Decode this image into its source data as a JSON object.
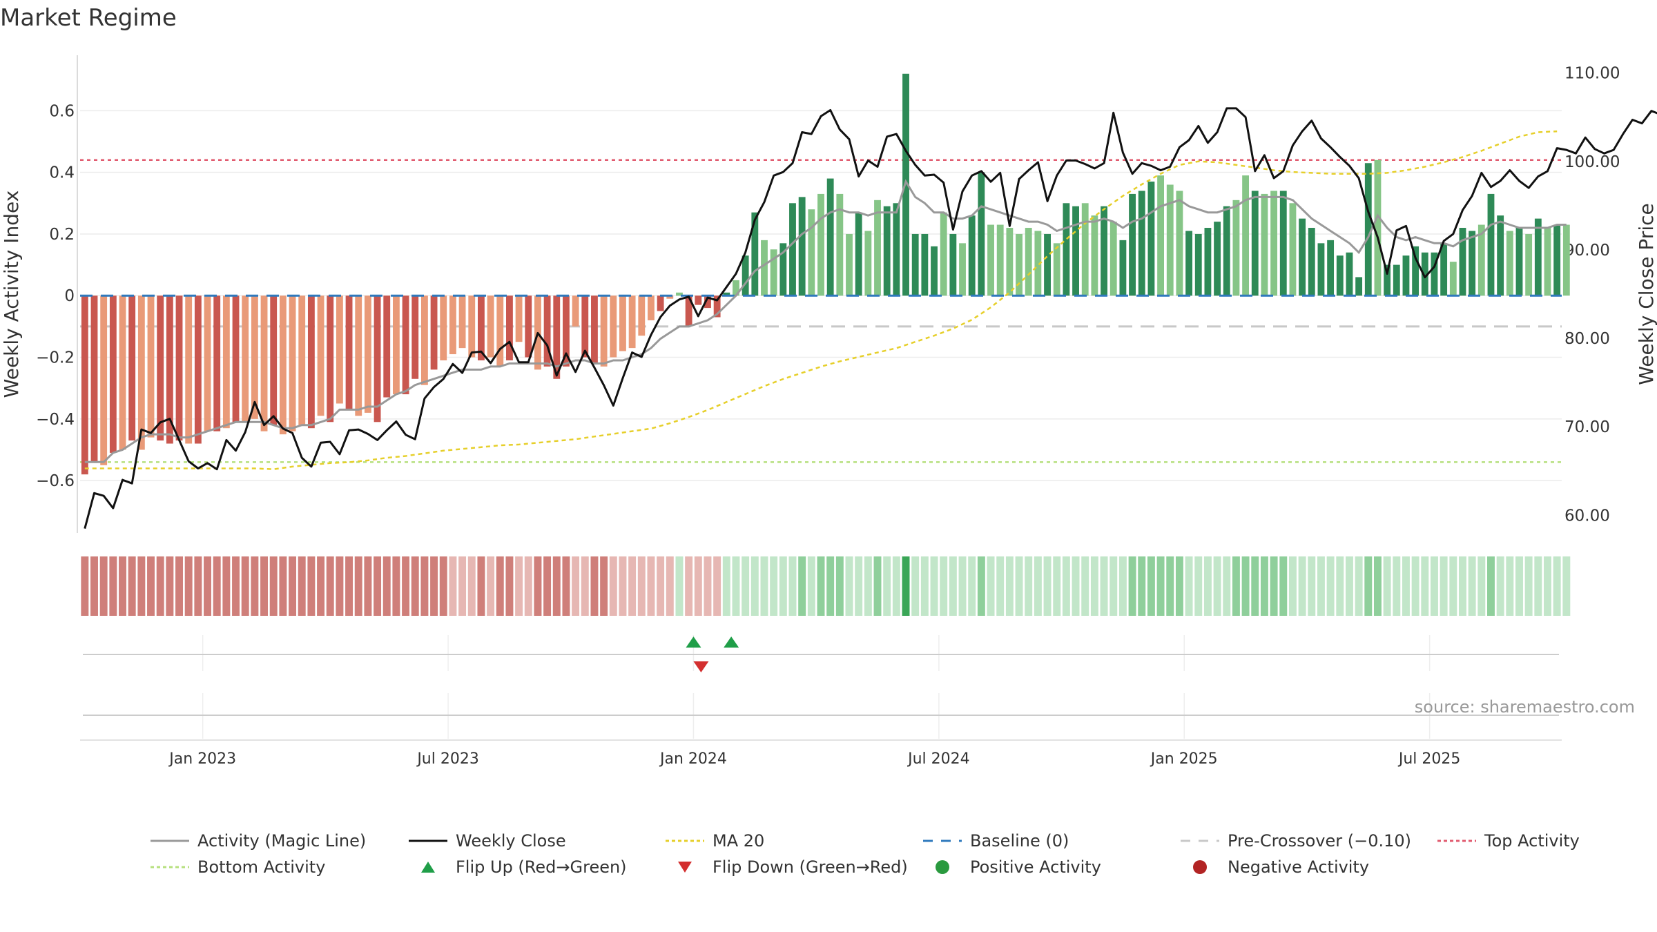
{
  "chart_data": {
    "type": "bar",
    "title": "Market Regime",
    "source_text": "source: sharemaestro.com",
    "y_left": {
      "label": "Weekly Activity Index",
      "ticks": [
        "0.6",
        "0.4",
        "0.2",
        "0",
        "−0.2",
        "−0.4",
        "−0.6"
      ],
      "ylim": [
        -0.77,
        0.78
      ]
    },
    "y_right": {
      "label": "Weekly Close Price",
      "ticks": [
        "110.00",
        "100.00",
        "90.00",
        "80.00",
        "70.00",
        "60.00"
      ],
      "ylim": [
        58.0,
        112.0
      ]
    },
    "x_ticks": [
      "Jan 2023",
      "Jul 2023",
      "Jan 2024",
      "Jul 2024",
      "Jan 2025",
      "Jul 2025"
    ],
    "x_tick_weeks": [
      12.5,
      38.5,
      64.5,
      90.5,
      116.5,
      142.5
    ],
    "weeks_total": 157,
    "activity": [
      -0.58,
      -0.54,
      -0.55,
      -0.51,
      -0.5,
      -0.47,
      -0.5,
      -0.46,
      -0.47,
      -0.48,
      -0.47,
      -0.48,
      -0.48,
      -0.44,
      -0.44,
      -0.43,
      -0.41,
      -0.41,
      -0.4,
      -0.44,
      -0.42,
      -0.45,
      -0.44,
      -0.42,
      -0.43,
      -0.39,
      -0.41,
      -0.35,
      -0.37,
      -0.39,
      -0.38,
      -0.41,
      -0.33,
      -0.32,
      -0.32,
      -0.27,
      -0.29,
      -0.24,
      -0.21,
      -0.19,
      -0.17,
      -0.2,
      -0.21,
      -0.2,
      -0.23,
      -0.21,
      -0.15,
      -0.2,
      -0.24,
      -0.23,
      -0.27,
      -0.23,
      -0.1,
      -0.2,
      -0.22,
      -0.23,
      -0.2,
      -0.18,
      -0.17,
      -0.13,
      -0.08,
      -0.05,
      -0.01,
      0.01,
      -0.1,
      -0.03,
      -0.04,
      -0.07,
      0.01,
      0.05,
      0.13,
      0.27,
      0.18,
      0.15,
      0.17,
      0.3,
      0.32,
      0.28,
      0.33,
      0.38,
      0.33,
      0.2,
      0.27,
      0.21,
      0.31,
      0.29,
      0.3,
      0.72,
      0.2,
      0.2,
      0.16,
      0.27,
      0.2,
      0.17,
      0.26,
      0.4,
      0.23,
      0.23,
      0.22,
      0.2,
      0.22,
      0.21,
      0.2,
      0.17,
      0.3,
      0.29,
      0.3,
      0.26,
      0.29,
      0.24,
      0.18,
      0.33,
      0.34,
      0.37,
      0.39,
      0.36,
      0.34,
      0.21,
      0.2,
      0.22,
      0.24,
      0.29,
      0.31,
      0.39,
      0.34,
      0.33,
      0.34,
      0.34,
      0.3,
      0.25,
      0.22,
      0.17,
      0.18,
      0.13,
      0.14,
      0.06,
      0.43,
      0.44,
      0.1,
      0.1,
      0.13,
      0.16,
      0.14,
      0.14,
      0.17,
      0.11,
      0.22,
      0.21,
      0.23,
      0.33,
      0.26,
      0.21,
      0.22,
      0.2,
      0.25,
      0.22,
      0.23,
      0.23
    ],
    "bar_shades": [
      1,
      1,
      0,
      1,
      0,
      1,
      0,
      0,
      1,
      1,
      1,
      0,
      1,
      0,
      1,
      0,
      1,
      0,
      0,
      0,
      1,
      0,
      0,
      0,
      1,
      0,
      1,
      0,
      1,
      0,
      0,
      1,
      1,
      0,
      1,
      1,
      0,
      1,
      0,
      0,
      0,
      0,
      1,
      0,
      0,
      1,
      0,
      1,
      0,
      1,
      1,
      1,
      0,
      1,
      1,
      0,
      0,
      0,
      0,
      0,
      0,
      1,
      0,
      0,
      1,
      1,
      1,
      1,
      1,
      0,
      1,
      1,
      0,
      0,
      1,
      1,
      1,
      0,
      0,
      1,
      0,
      0,
      1,
      0,
      0,
      1,
      1,
      1,
      1,
      1,
      1,
      0,
      1,
      0,
      1,
      1,
      0,
      0,
      0,
      0,
      0,
      0,
      1,
      0,
      1,
      1,
      0,
      0,
      1,
      0,
      1,
      1,
      1,
      1,
      0,
      0,
      0,
      1,
      1,
      1,
      1,
      1,
      0,
      0,
      1,
      0,
      0,
      1,
      0,
      1,
      1,
      1,
      1,
      1,
      1,
      1,
      1,
      0,
      1,
      1,
      1,
      1,
      1,
      1,
      1,
      0,
      1,
      1,
      0,
      1,
      1,
      0,
      1,
      0,
      1,
      0,
      1
    ],
    "magic_line": [
      -0.54,
      -0.54,
      -0.54,
      -0.51,
      -0.5,
      -0.48,
      -0.46,
      -0.45,
      -0.45,
      -0.45,
      -0.46,
      -0.46,
      -0.45,
      -0.44,
      -0.43,
      -0.42,
      -0.41,
      -0.41,
      -0.41,
      -0.41,
      -0.42,
      -0.43,
      -0.43,
      -0.42,
      -0.42,
      -0.41,
      -0.4,
      -0.37,
      -0.37,
      -0.37,
      -0.36,
      -0.36,
      -0.34,
      -0.32,
      -0.31,
      -0.29,
      -0.28,
      -0.27,
      -0.26,
      -0.25,
      -0.24,
      -0.24,
      -0.24,
      -0.23,
      -0.23,
      -0.22,
      -0.22,
      -0.22,
      -0.22,
      -0.22,
      -0.23,
      -0.22,
      -0.21,
      -0.21,
      -0.22,
      -0.22,
      -0.21,
      -0.21,
      -0.2,
      -0.19,
      -0.17,
      -0.14,
      -0.12,
      -0.1,
      -0.1,
      -0.09,
      -0.08,
      -0.06,
      -0.03,
      0.0,
      0.04,
      0.08,
      0.1,
      0.12,
      0.14,
      0.17,
      0.2,
      0.22,
      0.25,
      0.27,
      0.28,
      0.27,
      0.27,
      0.26,
      0.27,
      0.27,
      0.27,
      0.37,
      0.32,
      0.3,
      0.27,
      0.27,
      0.25,
      0.25,
      0.26,
      0.29,
      0.28,
      0.27,
      0.26,
      0.25,
      0.24,
      0.24,
      0.23,
      0.21,
      0.22,
      0.23,
      0.24,
      0.24,
      0.25,
      0.24,
      0.22,
      0.24,
      0.25,
      0.27,
      0.29,
      0.3,
      0.31,
      0.29,
      0.28,
      0.27,
      0.27,
      0.28,
      0.29,
      0.31,
      0.32,
      0.32,
      0.32,
      0.32,
      0.31,
      0.28,
      0.25,
      0.23,
      0.21,
      0.19,
      0.17,
      0.14,
      0.19,
      0.26,
      0.22,
      0.19,
      0.18,
      0.19,
      0.18,
      0.17,
      0.17,
      0.16,
      0.18,
      0.19,
      0.2,
      0.23,
      0.24,
      0.23,
      0.22,
      0.22,
      0.22,
      0.22,
      0.23,
      0.23
    ],
    "weekly_close": [
      58.5,
      62.5,
      62.2,
      60.8,
      64.0,
      63.6,
      69.7,
      69.3,
      70.5,
      70.9,
      68.5,
      66.1,
      65.3,
      65.9,
      65.2,
      68.5,
      67.3,
      69.4,
      72.8,
      70.2,
      71.2,
      69.8,
      69.3,
      66.5,
      65.5,
      68.2,
      68.3,
      66.9,
      69.6,
      69.7,
      69.2,
      68.5,
      69.6,
      70.6,
      69.1,
      68.6,
      73.2,
      74.5,
      75.4,
      77.1,
      76.1,
      78.4,
      78.5,
      77.2,
      78.8,
      79.6,
      77.3,
      77.3,
      80.6,
      79.2,
      75.8,
      78.3,
      76.2,
      78.6,
      76.7,
      74.7,
      72.4,
      75.5,
      78.4,
      77.9,
      80.4,
      82.4,
      83.7,
      84.4,
      84.7,
      82.5,
      84.6,
      84.3,
      85.8,
      87.3,
      89.7,
      93.4,
      95.4,
      98.4,
      98.8,
      99.8,
      103.3,
      103.1,
      105.1,
      105.8,
      103.6,
      102.5,
      98.3,
      100.1,
      99.4,
      102.8,
      103.1,
      101.2,
      99.6,
      98.4,
      98.5,
      97.6,
      92.3,
      96.6,
      98.4,
      98.9,
      97.7,
      98.7,
      92.7,
      98.0,
      99.0,
      99.9,
      95.5,
      98.4,
      100.1,
      100.1,
      99.7,
      99.2,
      99.8,
      105.5,
      101.0,
      98.6,
      99.8,
      99.5,
      99.0,
      99.4,
      101.6,
      102.4,
      104.0,
      102.1,
      103.3,
      106.0,
      106.0,
      105.0,
      98.9,
      100.7,
      98.1,
      98.9,
      101.8,
      103.4,
      104.6,
      102.6,
      101.6,
      100.5,
      99.5,
      98.1,
      94.3,
      91.4,
      87.3,
      92.2,
      92.7,
      89.1,
      86.9,
      88.1,
      91.0,
      91.8,
      94.5,
      96.1,
      98.7,
      97.1,
      97.8,
      99.0,
      97.8,
      97.0,
      98.3,
      98.9,
      101.5,
      101.3,
      100.9,
      102.7,
      101.4,
      100.9,
      101.3,
      103.1,
      104.7,
      104.3,
      105.7,
      105.3,
      105.4
    ]
  },
  "lines": {
    "ma20": [
      65.3,
      65.3,
      65.3,
      65.3,
      65.3,
      65.3,
      65.3,
      65.3,
      65.3,
      65.3,
      65.2,
      65.5,
      65.7,
      65.9,
      66.0,
      66.2,
      66.5,
      66.7,
      67.0,
      67.3,
      67.5,
      67.7,
      67.9,
      68.0,
      68.2,
      68.4,
      68.6,
      68.9,
      69.2,
      69.5,
      69.8,
      70.4,
      71.1,
      71.9,
      72.8,
      73.7,
      74.6,
      75.4,
      76.1,
      76.8,
      77.4,
      77.9,
      78.4,
      78.9,
      79.6,
      80.3,
      81.1,
      82.1,
      83.5,
      85.2,
      87.2,
      89.3,
      91.2,
      93.0,
      94.6,
      96.1,
      97.4,
      98.6,
      99.6,
      100.0,
      99.9,
      99.6,
      99.3,
      99.0,
      98.8,
      98.7,
      98.6,
      98.6,
      98.6,
      98.7,
      99.0,
      99.4,
      99.9,
      100.5,
      101.2,
      102.0,
      102.8,
      103.3,
      103.4,
      103.0,
      102.5,
      101.9,
      101.2,
      100.4,
      99.6,
      98.6,
      97.6,
      96.5,
      95.4,
      94.7,
      94.4,
      94.4,
      94.6,
      94.9,
      95.3,
      95.8,
      96.3,
      96.9,
      97.5,
      98.1,
      98.8,
      99.5,
      100.3,
      101.2,
      102.1,
      102.9
    ],
    "ma20_weeks": [
      0,
      2,
      4,
      6,
      8,
      10,
      12,
      14,
      16,
      18,
      20,
      22,
      24,
      26,
      28,
      30,
      32,
      34,
      36,
      38,
      40,
      42,
      44,
      46,
      48,
      50,
      52,
      54,
      56,
      58,
      60,
      62,
      64,
      66,
      68,
      70,
      72,
      74,
      76,
      78,
      80,
      82,
      84,
      86,
      88,
      90,
      92,
      94,
      96,
      98,
      100,
      102,
      104,
      106,
      108,
      110,
      112,
      114,
      116,
      118,
      120,
      122,
      124,
      126,
      128,
      130,
      132,
      134,
      136,
      138,
      140,
      142,
      144,
      146,
      148,
      150,
      152,
      154,
      156,
      156,
      156,
      156,
      156,
      156,
      156,
      156,
      156,
      156,
      156,
      156,
      156,
      156,
      156,
      156,
      156,
      156,
      156,
      156,
      156,
      156,
      156,
      156,
      156,
      156,
      156,
      156
    ],
    "baseline": 0,
    "pre_crossover": -0.1,
    "top_activity": 0.44,
    "bottom_activity": -0.54
  },
  "regime_strip": {
    "negative_colors": [
      "#cf7f7a",
      "#e6b7b3"
    ],
    "positive_colors": [
      "#8fcf9b",
      "#c2e6c9"
    ],
    "peak_color": "#3aa657"
  },
  "signals": {
    "flip_up_weeks": [
      64.5,
      68.5
    ],
    "flip_down_weeks": [
      65.3
    ]
  },
  "colors": {
    "neg_dark": "#c9574f",
    "neg_light": "#e99a78",
    "pos_dark": "#2e8a57",
    "pos_light": "#86c587",
    "magic": "#999999",
    "close": "#111111",
    "ma20": "#e6cf2a",
    "baseline": "#2f79bd",
    "pre": "#c8c8c8",
    "top": "#e15b6f",
    "bottom": "#b6e07e",
    "flip_up": "#1f9e48",
    "flip_down": "#d32f2f",
    "pos_dot": "#2a9a3f",
    "neg_dot": "#b22424"
  },
  "legend": [
    {
      "name": "legend-magic-line",
      "label": "Activity (Magic Line)",
      "kind": "line-solid",
      "color": "#999999"
    },
    {
      "name": "legend-weekly-close",
      "label": "Weekly Close",
      "kind": "line-solid",
      "color": "#111111"
    },
    {
      "name": "legend-ma20",
      "label": "MA 20",
      "kind": "line-dotted",
      "color": "#e6cf2a"
    },
    {
      "name": "legend-baseline",
      "label": "Baseline (0)",
      "kind": "line-dashed",
      "color": "#2f79bd"
    },
    {
      "name": "legend-pre-crossover",
      "label": "Pre-Crossover (−0.10)",
      "kind": "line-dashed",
      "color": "#c8c8c8"
    },
    {
      "name": "legend-top-activity",
      "label": "Top Activity",
      "kind": "line-dotted",
      "color": "#e15b6f"
    },
    {
      "name": "legend-bottom-activity",
      "label": "Bottom Activity",
      "kind": "line-dotted",
      "color": "#b6e07e"
    },
    {
      "name": "legend-flip-up",
      "label": "Flip Up (Red→Green)",
      "kind": "tri-up",
      "color": "#1f9e48"
    },
    {
      "name": "legend-flip-down",
      "label": "Flip Down (Green→Red)",
      "kind": "tri-down",
      "color": "#d32f2f"
    },
    {
      "name": "legend-positive-activity",
      "label": "Positive Activity",
      "kind": "dot",
      "color": "#2a9a3f"
    },
    {
      "name": "legend-negative-activity",
      "label": "Negative Activity",
      "kind": "dot",
      "color": "#b22424"
    }
  ]
}
